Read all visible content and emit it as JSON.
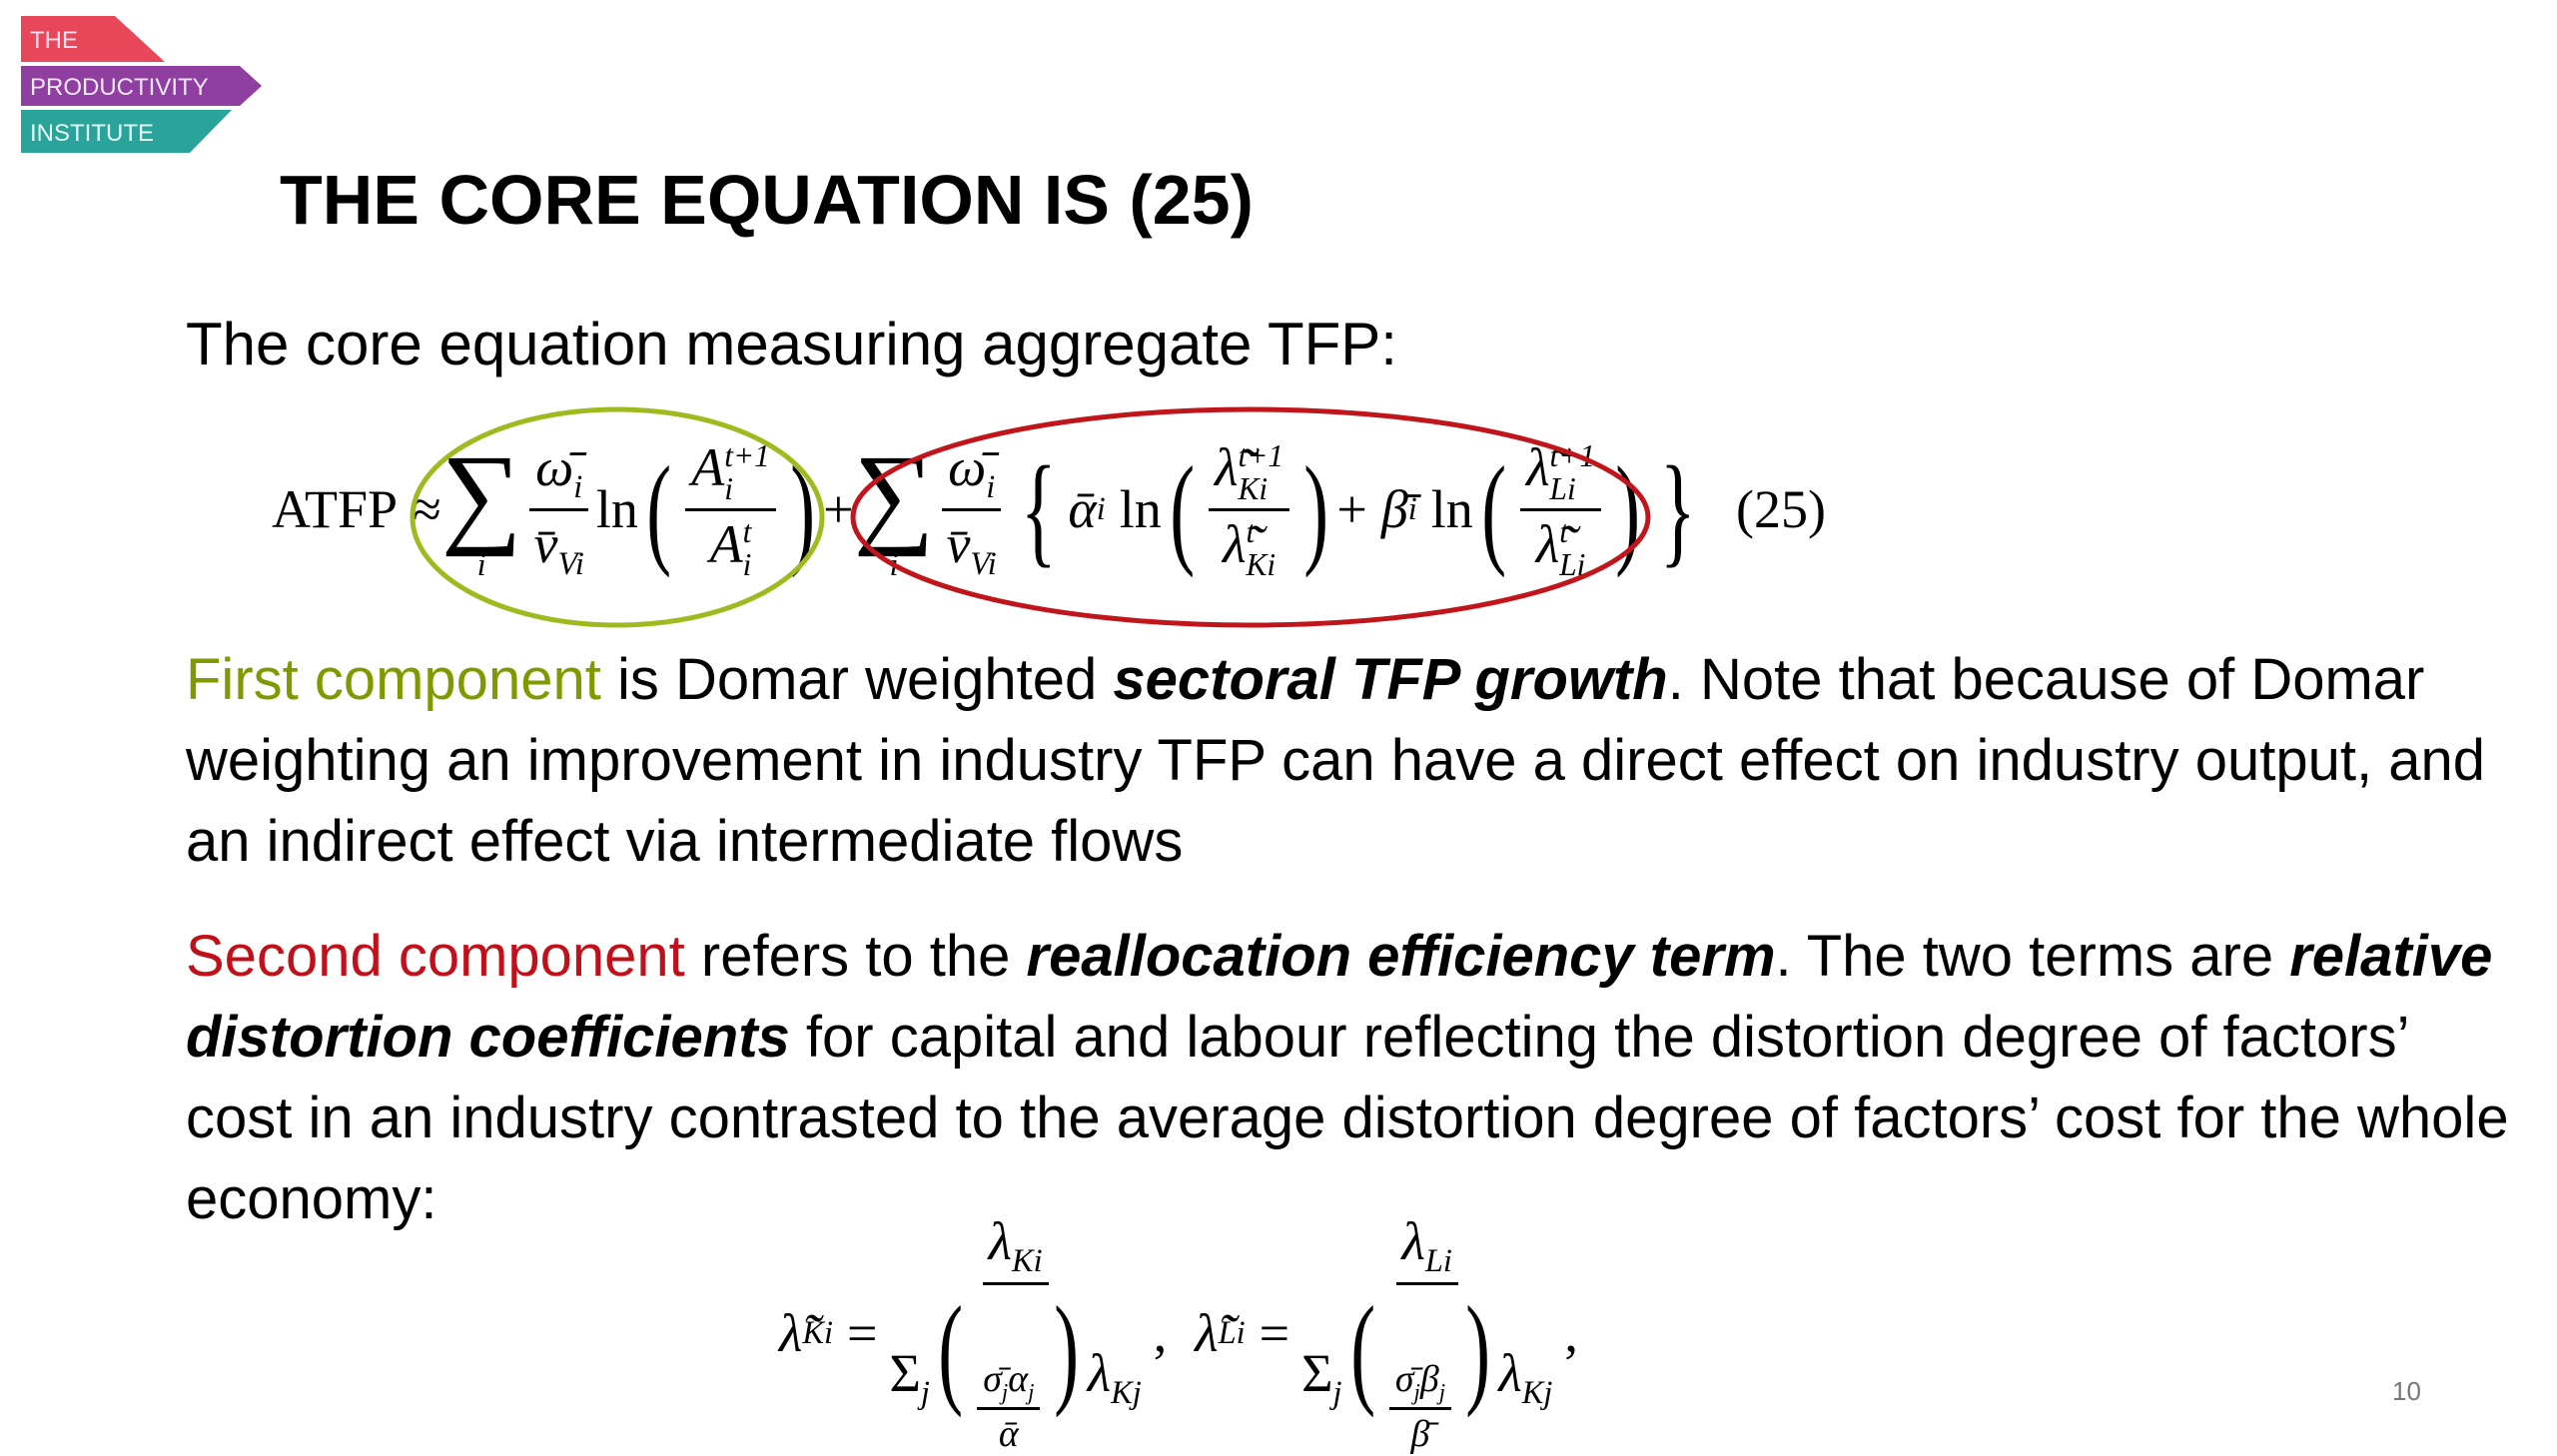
{
  "logo": {
    "line1": "THE",
    "line2": "PRODUCTIVITY",
    "line3": "INSTITUTE"
  },
  "title": "THE CORE EQUATION IS (25)",
  "intro": "The core equation measuring aggregate TFP:",
  "equation_25": {
    "lhs": "ATFP",
    "approx": "≈",
    "sum": "∑",
    "sum_index": "i",
    "omega": "ω̄",
    "v": "v̄",
    "sub_i": "i",
    "sub_Vi": "Vi",
    "ln": "ln",
    "A": "A",
    "sup_t1": "t+1",
    "sup_t": "t",
    "plus": "+",
    "brace_open": "{",
    "brace_close": "}",
    "paren_open": "(",
    "paren_close": ")",
    "alpha": "ᾱ",
    "beta": "β̄",
    "lambda": "λ̃",
    "sub_Ki": "Ki",
    "sub_Li": "Li",
    "number": "(25)"
  },
  "paragraph_1": {
    "highlight": "First component",
    "text1": " is Domar weighted ",
    "emphasis": "sectoral TFP growth",
    "text2": ". Note that because of Domar weighting an improvement in industry TFP can have a direct effect on industry output, and an indirect effect via intermediate flows"
  },
  "paragraph_2": {
    "highlight": "Second component",
    "text1": " refers to the ",
    "emphasis1": "reallocation efficiency term",
    "text2": ". The two terms are ",
    "emphasis2": "relative distortion coefficients",
    "text3": " for capital and labour reflecting the distortion degree of factors’ cost in an industry contrasted to the average distortion degree of factors’ cost for the whole economy:"
  },
  "equation_26": {
    "lambda_tilde": "λ̃",
    "lambda": "λ",
    "sub_Ki": "Ki",
    "sub_Li": "Li",
    "sub_Kj": "Kj",
    "equals": "=",
    "sum": "Σ",
    "sub_j": "j",
    "sigma": "σ̄",
    "alpha": "α",
    "beta": "β",
    "alpha_bar": "ᾱ",
    "beta_bar": "β̄",
    "comma": ",",
    "paren_open": "(",
    "paren_close": ")"
  },
  "page_number": "10"
}
